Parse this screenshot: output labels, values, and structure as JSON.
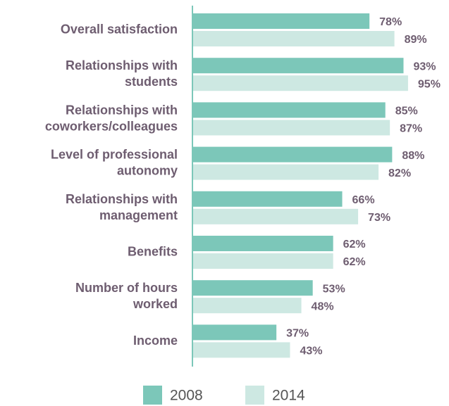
{
  "chart_data": {
    "type": "bar",
    "orientation": "horizontal",
    "categories": [
      "Overall satisfaction",
      "Relationships with\nstudents",
      "Relationships with\ncoworkers/colleagues",
      "Level of professional\nautonomy",
      "Relationships with\nmanagement",
      "Benefits",
      "Number of hours\nworked",
      "Income"
    ],
    "series": [
      {
        "name": "2008",
        "color": "#7cc7b9",
        "values": [
          78,
          93,
          85,
          88,
          66,
          62,
          53,
          37
        ],
        "value_labels": [
          "78%",
          "93%",
          "85%",
          "88%",
          "66%",
          "62%",
          "53%",
          "37%"
        ]
      },
      {
        "name": "2014",
        "color": "#cde8e2",
        "values": [
          89,
          95,
          87,
          82,
          73,
          62,
          48,
          43
        ],
        "value_labels": [
          "89%",
          "95%",
          "87%",
          "82%",
          "73%",
          "62%",
          "48%",
          "43%"
        ]
      }
    ],
    "xlim": [
      0,
      100
    ],
    "legend": "bottom"
  }
}
